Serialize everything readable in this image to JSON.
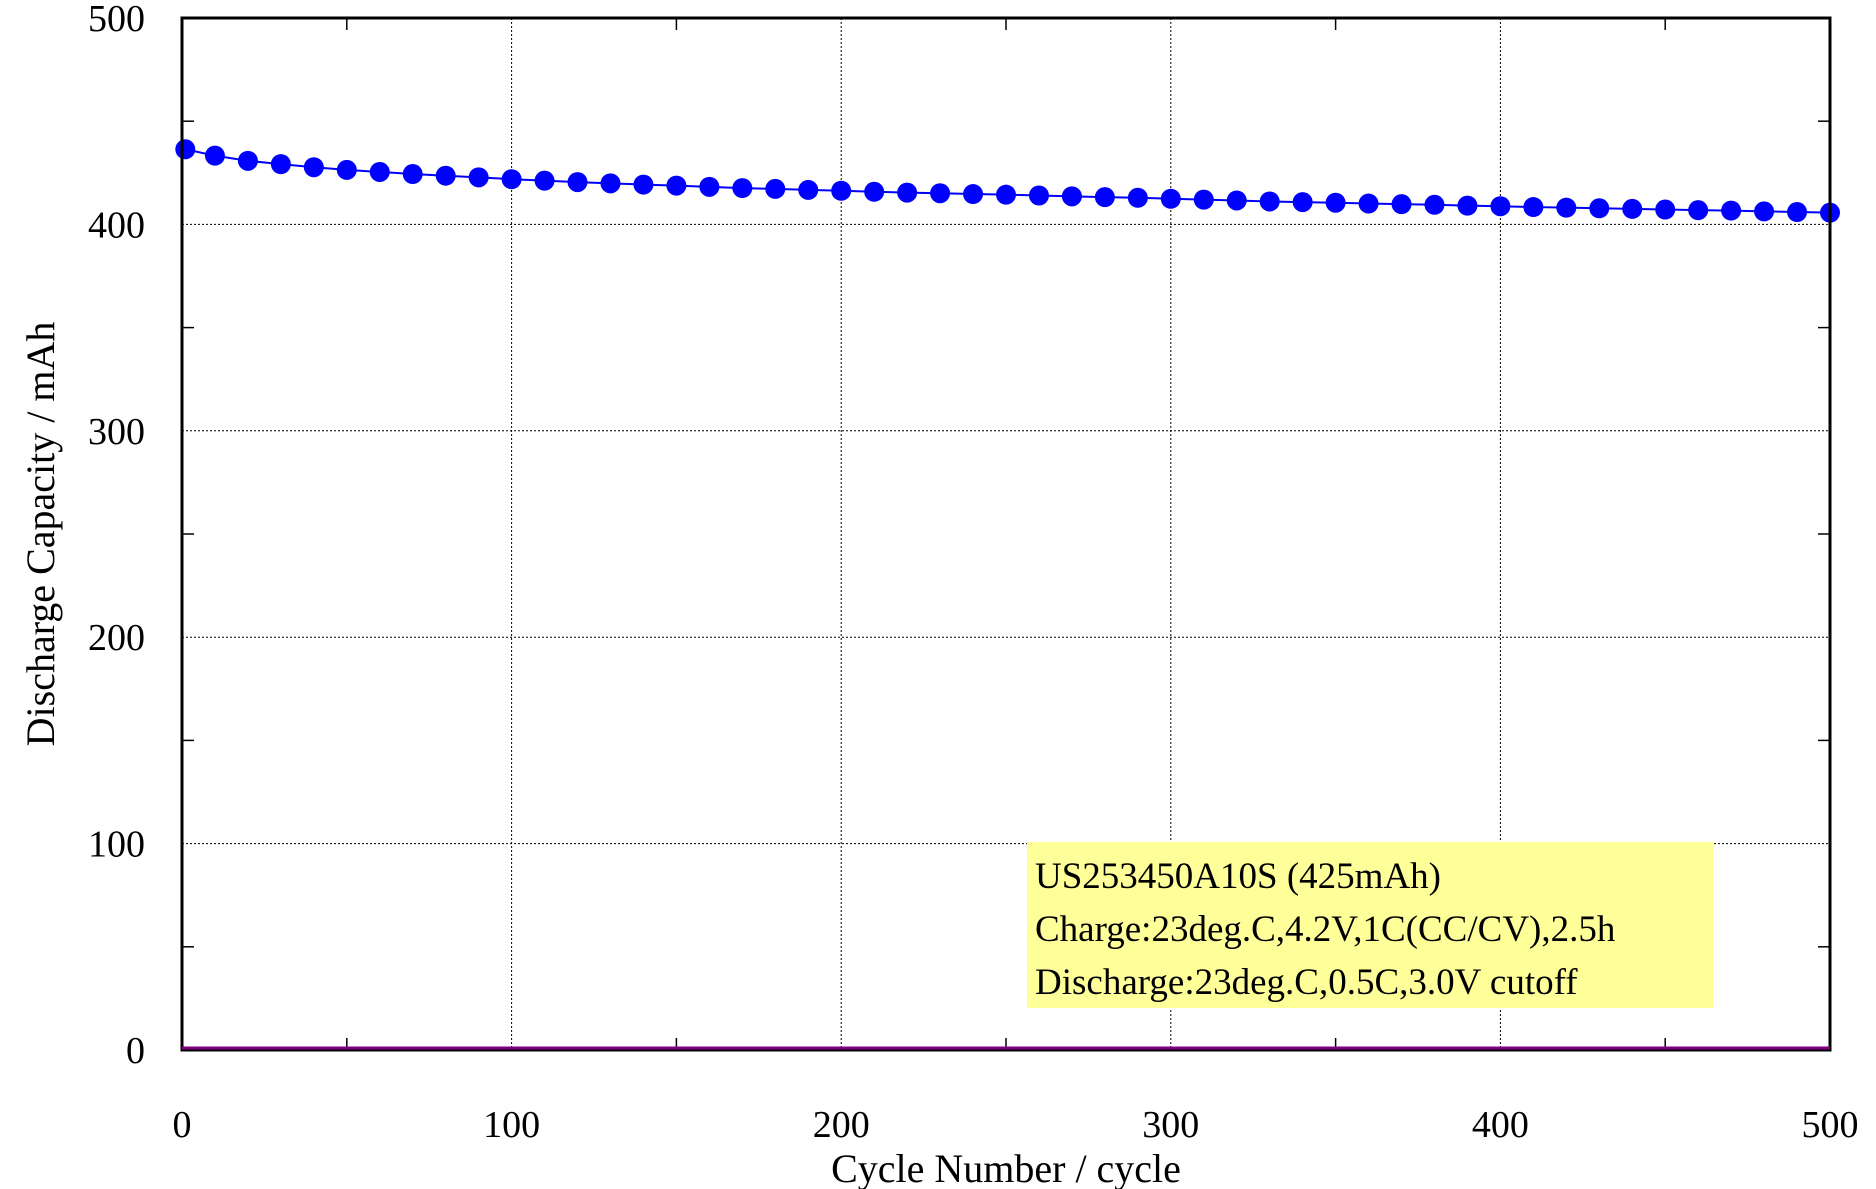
{
  "chart_data": {
    "type": "scatter",
    "xlabel": "Cycle Number / cycle",
    "ylabel": "Discharge Capacity / mAh",
    "xlim": [
      0,
      500
    ],
    "ylim": [
      0,
      500
    ],
    "x_ticks": [
      0,
      100,
      200,
      300,
      400,
      500
    ],
    "y_ticks": [
      0,
      100,
      200,
      300,
      400,
      500
    ],
    "grid": true,
    "annotation": {
      "lines": [
        "US253450A10S (425mAh)",
        "Charge:23deg.C,4.2V,1C(CC/CV),2.5h",
        "Discharge:23deg.C,0.5C,3.0V cutoff"
      ],
      "background": "#ffff99",
      "position": "bottom-right"
    },
    "series": [
      {
        "color": "#0000ff",
        "marker": "circle",
        "x": [
          1,
          10,
          20,
          30,
          40,
          50,
          60,
          70,
          80,
          90,
          100,
          110,
          120,
          130,
          140,
          150,
          160,
          170,
          180,
          190,
          200,
          210,
          220,
          230,
          240,
          250,
          260,
          270,
          280,
          290,
          300,
          310,
          320,
          330,
          340,
          350,
          360,
          370,
          380,
          390,
          400,
          410,
          420,
          430,
          440,
          450,
          460,
          470,
          480,
          490,
          500
        ],
        "values": [
          436.4,
          433.3,
          430.8,
          429.2,
          427.7,
          426.4,
          425.4,
          424.4,
          423.6,
          422.8,
          421.9,
          421.2,
          420.5,
          419.9,
          419.3,
          418.8,
          418.2,
          417.6,
          417.2,
          416.7,
          416.3,
          415.8,
          415.4,
          415.1,
          414.7,
          414.4,
          414.0,
          413.6,
          413.2,
          412.9,
          412.4,
          412.0,
          411.6,
          411.1,
          410.8,
          410.5,
          410.1,
          409.8,
          409.5,
          409.1,
          408.8,
          408.4,
          408.1,
          407.8,
          407.5,
          407.2,
          406.9,
          406.7,
          406.3,
          406.0,
          405.7
        ]
      }
    ]
  }
}
